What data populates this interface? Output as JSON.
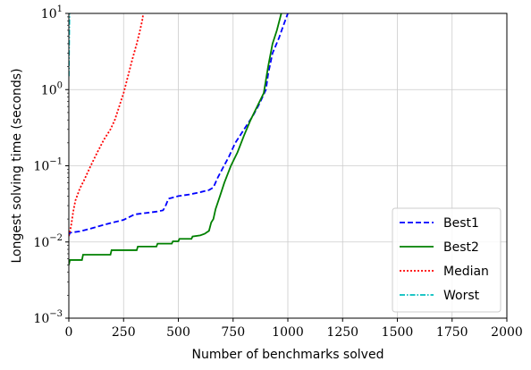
{
  "chart_data": {
    "type": "line",
    "title": "",
    "xlabel": "Number of benchmarks solved",
    "ylabel": "Longest solving time (seconds)",
    "xlim": [
      0,
      2000
    ],
    "ylim": [
      0.001,
      10
    ],
    "yscale": "log",
    "grid": true,
    "legend_position": "bottom-right",
    "x_ticks": [
      0,
      250,
      500,
      750,
      1000,
      1250,
      1500,
      1750,
      2000
    ],
    "x_tick_labels": [
      "0",
      "250",
      "500",
      "750",
      "1000",
      "1250",
      "1500",
      "1750",
      "2000"
    ],
    "y_ticks": [
      0.001,
      0.01,
      0.1,
      1,
      10
    ],
    "y_tick_labels": [
      {
        "base": "10",
        "exp": "−3"
      },
      {
        "base": "10",
        "exp": "−2"
      },
      {
        "base": "10",
        "exp": "−1"
      },
      {
        "base": "10",
        "exp": "0"
      },
      {
        "base": "10",
        "exp": "1"
      }
    ],
    "series": [
      {
        "name": "Best1",
        "color": "#0000ff",
        "dash": "6,3",
        "points": [
          [
            0,
            0.012
          ],
          [
            5,
            0.0132
          ],
          [
            50,
            0.0138
          ],
          [
            100,
            0.015
          ],
          [
            150,
            0.0165
          ],
          [
            200,
            0.018
          ],
          [
            250,
            0.0195
          ],
          [
            300,
            0.023
          ],
          [
            350,
            0.024
          ],
          [
            400,
            0.025
          ],
          [
            430,
            0.026
          ],
          [
            440,
            0.029
          ],
          [
            455,
            0.037
          ],
          [
            470,
            0.038
          ],
          [
            500,
            0.04
          ],
          [
            550,
            0.042
          ],
          [
            600,
            0.045
          ],
          [
            640,
            0.048
          ],
          [
            660,
            0.052
          ],
          [
            680,
            0.07
          ],
          [
            700,
            0.09
          ],
          [
            730,
            0.13
          ],
          [
            760,
            0.2
          ],
          [
            800,
            0.3
          ],
          [
            840,
            0.45
          ],
          [
            870,
            0.65
          ],
          [
            900,
            1.0
          ],
          [
            910,
            1.6
          ],
          [
            930,
            3.0
          ],
          [
            960,
            4.8
          ],
          [
            980,
            7.0
          ],
          [
            1000,
            10.0
          ]
        ]
      },
      {
        "name": "Best2",
        "color": "#008000",
        "dash": "",
        "points": [
          [
            0,
            0.005
          ],
          [
            5,
            0.0058
          ],
          [
            60,
            0.0058
          ],
          [
            65,
            0.0068
          ],
          [
            190,
            0.0068
          ],
          [
            195,
            0.0078
          ],
          [
            310,
            0.0078
          ],
          [
            315,
            0.0087
          ],
          [
            400,
            0.0087
          ],
          [
            405,
            0.0095
          ],
          [
            470,
            0.0095
          ],
          [
            475,
            0.0102
          ],
          [
            500,
            0.0102
          ],
          [
            505,
            0.011
          ],
          [
            560,
            0.011
          ],
          [
            565,
            0.0118
          ],
          [
            600,
            0.0122
          ],
          [
            620,
            0.0128
          ],
          [
            640,
            0.014
          ],
          [
            650,
            0.018
          ],
          [
            660,
            0.02
          ],
          [
            670,
            0.027
          ],
          [
            690,
            0.04
          ],
          [
            710,
            0.06
          ],
          [
            740,
            0.1
          ],
          [
            770,
            0.15
          ],
          [
            800,
            0.25
          ],
          [
            830,
            0.4
          ],
          [
            860,
            0.6
          ],
          [
            890,
            0.9
          ],
          [
            910,
            2.0
          ],
          [
            930,
            4.0
          ],
          [
            950,
            6.0
          ],
          [
            970,
            10.0
          ]
        ]
      },
      {
        "name": "Median",
        "color": "#ff0000",
        "dash": "2,2",
        "points": [
          [
            0,
            0.012
          ],
          [
            10,
            0.016
          ],
          [
            20,
            0.025
          ],
          [
            30,
            0.035
          ],
          [
            50,
            0.05
          ],
          [
            70,
            0.065
          ],
          [
            100,
            0.1
          ],
          [
            130,
            0.15
          ],
          [
            160,
            0.22
          ],
          [
            190,
            0.3
          ],
          [
            210,
            0.4
          ],
          [
            230,
            0.6
          ],
          [
            250,
            0.9
          ],
          [
            270,
            1.5
          ],
          [
            290,
            2.5
          ],
          [
            310,
            4.0
          ],
          [
            325,
            6.0
          ],
          [
            335,
            8.0
          ],
          [
            340,
            10.0
          ]
        ]
      },
      {
        "name": "Worst",
        "color": "#00bfbf",
        "dash": "6,2,1.5,2",
        "points": [
          [
            0,
            1.5
          ],
          [
            1,
            3.0
          ],
          [
            2,
            5.5
          ],
          [
            3,
            10.0
          ]
        ]
      }
    ]
  }
}
